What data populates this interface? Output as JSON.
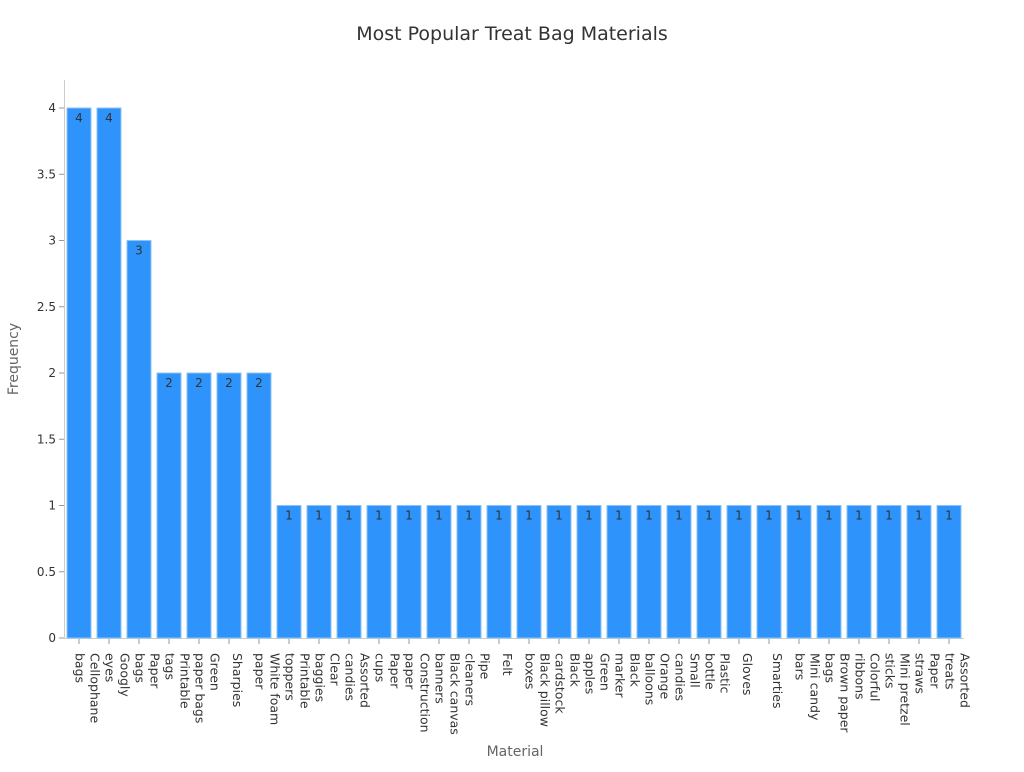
{
  "chart_data": {
    "type": "bar",
    "title": "Most Popular Treat Bag Materials",
    "xlabel": "Material",
    "ylabel": "Frequency",
    "ylim": [
      0,
      4.2
    ],
    "yticks": [
      "0",
      "0.5",
      "1",
      "1.5",
      "2",
      "2.5",
      "3",
      "3.5",
      "4"
    ],
    "grid": false,
    "bar_color": "#2e93fa",
    "categories": [
      [
        "Cellophane",
        "bags"
      ],
      [
        "Googly",
        "eyes"
      ],
      [
        "Paper",
        "bags"
      ],
      [
        "Printable",
        "tags"
      ],
      [
        "Green",
        "paper bags"
      ],
      [
        "Sharpies"
      ],
      [
        "White foam",
        "paper"
      ],
      [
        "Printable",
        "toppers"
      ],
      [
        "Clear",
        "baggies"
      ],
      [
        "Assorted",
        "candies"
      ],
      [
        "Paper",
        "cups"
      ],
      [
        "Construction",
        "paper"
      ],
      [
        "Black canvas",
        "banners"
      ],
      [
        "Pipe",
        "cleaners"
      ],
      [
        "Felt"
      ],
      [
        "Black pillow",
        "boxes"
      ],
      [
        "Black",
        "cardstock"
      ],
      [
        "Green",
        "apples"
      ],
      [
        "Black",
        "marker"
      ],
      [
        "Orange",
        "balloons"
      ],
      [
        "Small",
        "candies"
      ],
      [
        "Plastic",
        "bottle"
      ],
      [
        "Gloves"
      ],
      [
        "Smarties"
      ],
      [
        "Mini candy",
        "bars"
      ],
      [
        "Brown paper",
        "bags"
      ],
      [
        "Colorful",
        "ribbons"
      ],
      [
        "Mini pretzel",
        "sticks"
      ],
      [
        "Paper",
        "straws"
      ],
      [
        "Assorted",
        "treats"
      ]
    ],
    "values": [
      4,
      4,
      3,
      2,
      2,
      2,
      2,
      1,
      1,
      1,
      1,
      1,
      1,
      1,
      1,
      1,
      1,
      1,
      1,
      1,
      1,
      1,
      1,
      1,
      1,
      1,
      1,
      1,
      1,
      1
    ]
  }
}
